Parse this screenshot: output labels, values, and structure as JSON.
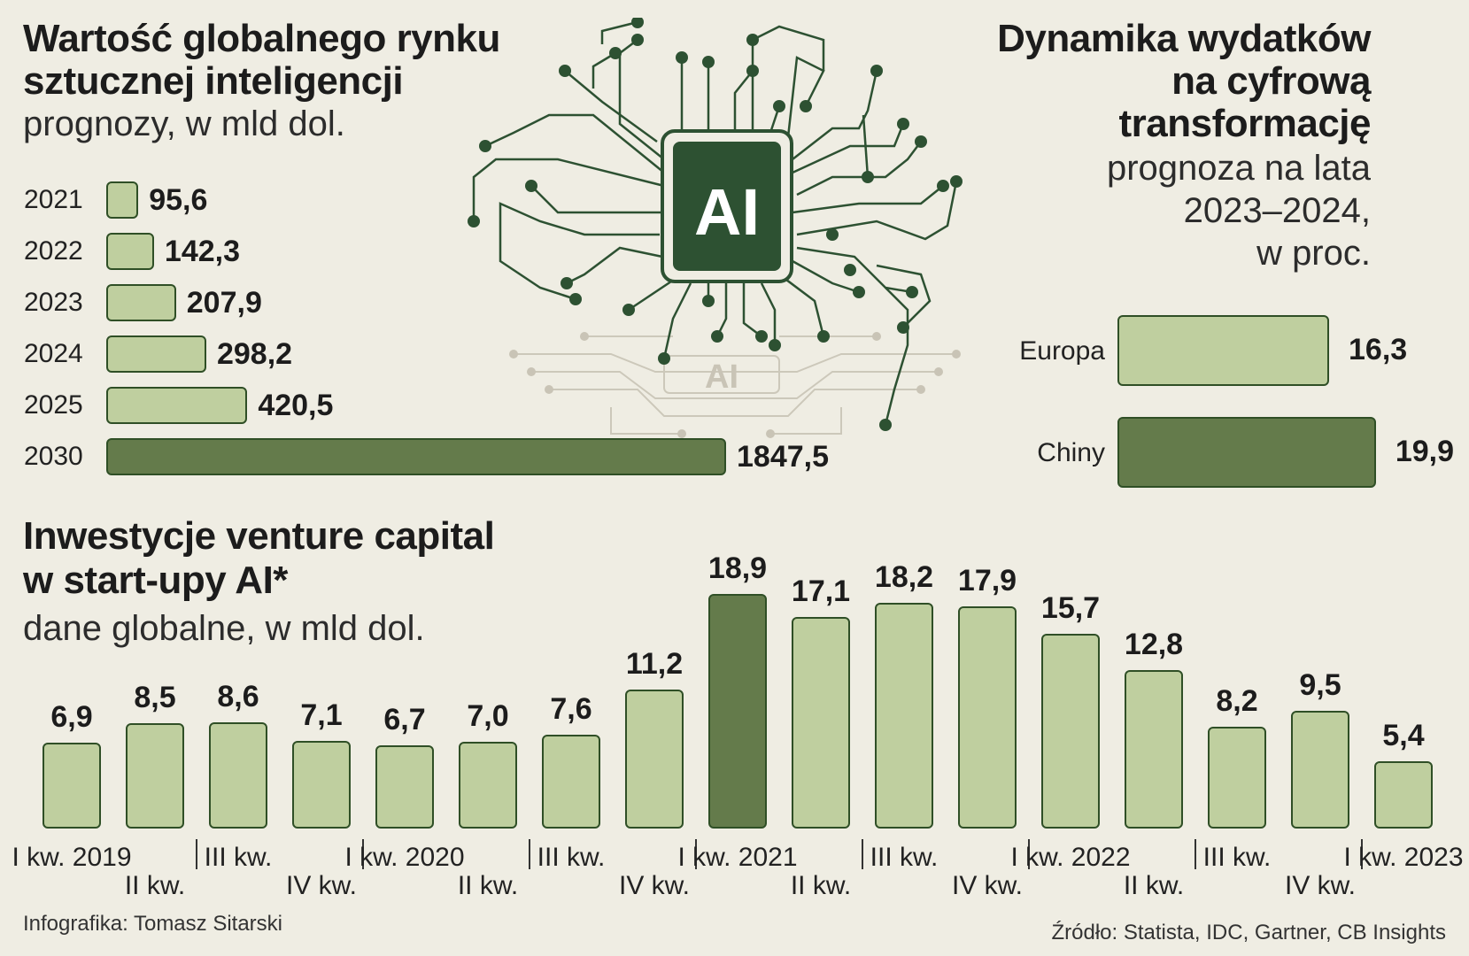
{
  "market": {
    "title_line1": "Wartość globalnego rynku",
    "title_line2": "sztucznej inteligencji",
    "subtitle": "prognozy, w mld dol."
  },
  "spending": {
    "title_line1": "Dynamika wydatków",
    "title_line2": "na cyfrową",
    "title_line3": "transformację",
    "subtitle_line1": "prognoza na lata",
    "subtitle_line2": "2023–2024,",
    "subtitle_line3": "w proc."
  },
  "vc": {
    "title_line1": "Inwestycje venture capital",
    "title_line2": "w start-upy AI*",
    "subtitle": "dane globalne, w mld dol."
  },
  "illustration": {
    "chip_label": "AI",
    "icon": "ai-chip-circuit-icon"
  },
  "footer": {
    "credit": "Infografika: Tomasz Sitarski",
    "source": "Źródło: Statista, IDC, Gartner, CB Insights"
  },
  "colors": {
    "light_bar": "#bfcf9f",
    "dark_bar": "#647b4b",
    "border": "#2f4f26",
    "chip": "#2d5132",
    "background": "#efede3"
  },
  "chart_data": [
    {
      "type": "bar",
      "orientation": "horizontal",
      "categories": [
        "2021",
        "2022",
        "2023",
        "2024",
        "2025",
        "2030"
      ],
      "values": [
        95.6,
        142.3,
        207.9,
        298.2,
        420.5,
        1847.5
      ],
      "value_labels": [
        "95,6",
        "142,3",
        "207,9",
        "298,2",
        "420,5",
        "1847,5"
      ],
      "highlight_index": 5
    },
    {
      "type": "bar",
      "orientation": "horizontal",
      "categories": [
        "Europa",
        "Chiny"
      ],
      "values": [
        16.3,
        19.9
      ],
      "value_labels": [
        "16,3",
        "19,9"
      ],
      "highlight_index": 1
    },
    {
      "type": "bar",
      "orientation": "vertical",
      "categories": [
        "I kw. 2019",
        "II kw.",
        "III kw.",
        "IV kw.",
        "I kw. 2020",
        "II kw.",
        "III kw.",
        "IV kw.",
        "I kw. 2021",
        "II kw.",
        "III kw.",
        "IV kw.",
        "I kw. 2022",
        "II kw.",
        "III kw.",
        "IV kw.",
        "I kw. 2023"
      ],
      "values": [
        6.9,
        8.5,
        8.6,
        7.1,
        6.7,
        7.0,
        7.6,
        11.2,
        18.9,
        17.1,
        18.2,
        17.9,
        15.7,
        12.8,
        8.2,
        9.5,
        5.4
      ],
      "value_labels": [
        "6,9",
        "8,5",
        "8,6",
        "7,1",
        "6,7",
        "7,0",
        "7,6",
        "11,2",
        "18,9",
        "17,1",
        "18,2",
        "17,9",
        "15,7",
        "12,8",
        "8,2",
        "9,5",
        "5,4"
      ],
      "highlight_index": 8
    }
  ]
}
